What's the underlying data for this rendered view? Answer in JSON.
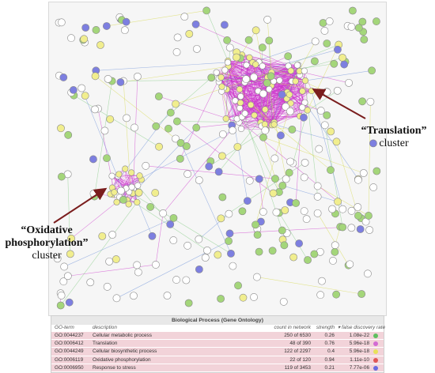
{
  "network": {
    "cluster_labels": {
      "translation": {
        "name": "“Translation”",
        "word": "cluster"
      },
      "oxidative": {
        "name_line1": "“Oxidative",
        "name_line2": "phosphorylation”",
        "word": "cluster"
      }
    },
    "colors": {
      "panel_bg": "#f6f6f6",
      "edge_purple": "#cc33cc",
      "edge_yellow": "#d6d84a",
      "edge_green": "#7fc97f",
      "edge_blue": "#6a8fd8",
      "node_green": "#a4d67a",
      "node_yellow": "#f1ee8e",
      "node_blue": "#7d7fe0",
      "node_white": "#ffffff",
      "arrow": "#7a1d1d"
    }
  },
  "go_table": {
    "title": "Biological Process (Gene Ontology)",
    "headers": {
      "term": "GO-term",
      "description": "description",
      "count": "count in network",
      "strength": "strength",
      "fdr": "▾ false discovery rate"
    },
    "rows": [
      {
        "term": "GO:0044237",
        "description": "Cellular metabolic process",
        "count": "250 of 6530",
        "strength": "0.26",
        "fdr": "1.08e-22",
        "color": "#5fbf5f"
      },
      {
        "term": "GO:0006412",
        "description": "Translation",
        "count": "48 of 390",
        "strength": "0.76",
        "fdr": "5.96e-18",
        "color": "#d36ad3"
      },
      {
        "term": "GO:0044249",
        "description": "Cellular biosynthetic process",
        "count": "122 of 2297",
        "strength": "0.4",
        "fdr": "5.96e-18",
        "color": "#e8e25a"
      },
      {
        "term": "GO:0006119",
        "description": "Oxidative phosphorylation",
        "count": "22 of 120",
        "strength": "0.94",
        "fdr": "1.11e-10",
        "color": "#e05555"
      },
      {
        "term": "GO:0006950",
        "description": "Response to stress",
        "count": "119 of 3453",
        "strength": "0.21",
        "fdr": "7.77e-06",
        "color": "#6a6ae0"
      }
    ]
  }
}
